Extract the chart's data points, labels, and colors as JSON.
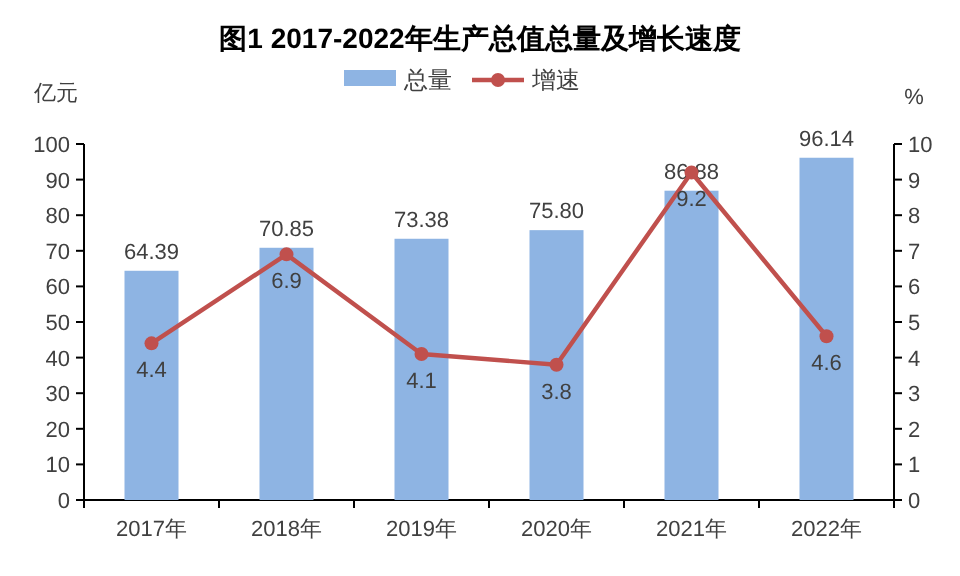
{
  "chart_data": {
    "type": "bar",
    "title": "图1 2017-2022年生产总值总量及增长速度",
    "ylabel": "亿元",
    "y2label": "%",
    "categories": [
      "2017年",
      "2018年",
      "2019年",
      "2020年",
      "2021年",
      "2022年"
    ],
    "series": [
      {
        "name": "总量",
        "color": "#8eb4e3",
        "values": [
          64.39,
          70.85,
          73.38,
          75.8,
          86.88,
          96.14
        ],
        "value_labels": [
          "64.39",
          "70.85",
          "73.38",
          "75.80",
          "86.88",
          "96.14"
        ]
      },
      {
        "name": "增速",
        "type": "line",
        "axis": "y2",
        "color": "#c0504d",
        "values": [
          4.4,
          6.9,
          4.1,
          3.8,
          9.2,
          4.6
        ]
      }
    ],
    "ylim": [
      0,
      100
    ],
    "yticks": [
      0,
      10,
      20,
      30,
      40,
      50,
      60,
      70,
      80,
      90,
      100
    ],
    "y2lim": [
      0,
      10
    ],
    "y2ticks": [
      0,
      1,
      2,
      3,
      4,
      5,
      6,
      7,
      8,
      9,
      10
    ],
    "data_labels": true,
    "legend": "top",
    "marker": "circle",
    "grid": false
  }
}
